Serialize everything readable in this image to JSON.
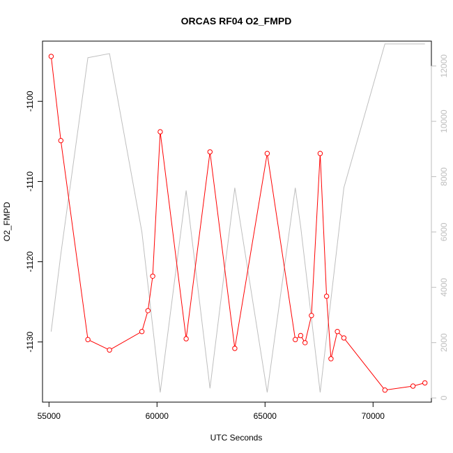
{
  "chart_data": {
    "type": "line",
    "title": "ORCAS RF04 O2_FMPD",
    "xlabel": "UTC Seconds",
    "ylabel": "O2_FMPD",
    "xlim": [
      54700,
      72700
    ],
    "ylim": [
      -1137.5,
      -1092.5
    ],
    "y2lim": [
      -150,
      12900
    ],
    "x_ticks": [
      55000,
      60000,
      65000,
      70000
    ],
    "y_ticks": [
      -1130,
      -1120,
      -1110,
      -1100
    ],
    "y2_ticks": [
      0,
      2000,
      4000,
      6000,
      8000,
      10000,
      12000
    ],
    "series": [
      {
        "axis": "left",
        "color": "#ff0000",
        "markers": true,
        "x": [
          55100,
          55550,
          56800,
          57800,
          59300,
          59580,
          59800,
          60150,
          61350,
          62450,
          63600,
          65100,
          66400,
          66650,
          66850,
          67150,
          67550,
          67850,
          68050,
          68350,
          68650,
          70550,
          71850,
          72400
        ],
        "y": [
          -1094.4,
          -1104.9,
          -1129.7,
          -1131.0,
          -1128.7,
          -1126.1,
          -1121.8,
          -1103.8,
          -1129.6,
          -1106.3,
          -1130.8,
          -1106.5,
          -1129.7,
          -1129.2,
          -1130.1,
          -1126.7,
          -1106.5,
          -1124.3,
          -1132.1,
          -1128.7,
          -1129.5,
          -1136.0,
          -1135.5,
          -1135.1
        ]
      },
      {
        "axis": "right",
        "color": "#bebebe",
        "markers": false,
        "x": [
          55100,
          55550,
          56800,
          57800,
          59300,
          60150,
          61350,
          62450,
          63600,
          65100,
          66400,
          66650,
          67550,
          68650,
          70550,
          72400
        ],
        "y": [
          2400,
          5200,
          12300,
          12450,
          6000,
          200,
          7500,
          350,
          7600,
          200,
          7600,
          6200,
          200,
          7600,
          12800,
          12800
        ]
      }
    ]
  }
}
